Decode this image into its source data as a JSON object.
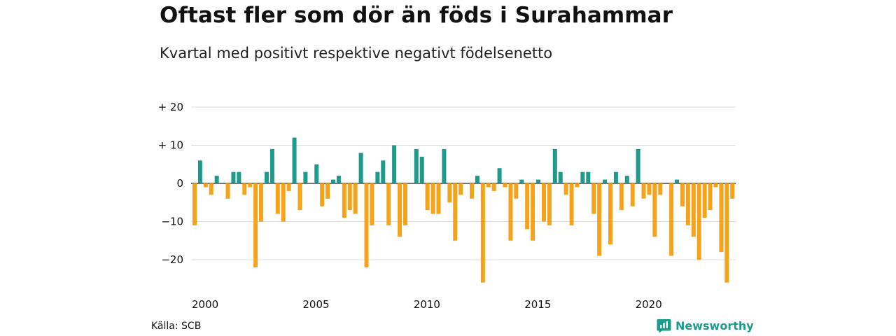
{
  "title": "Oftast fler som dör än föds i Surahammar",
  "subtitle": "Kvartal med positivt respektive negativt födelsenetto",
  "source": "Källa: SCB",
  "brand": {
    "name": "Newsworthy",
    "icon": "newsworthy-logo-icon"
  },
  "colors": {
    "positive": "#1f9a8a",
    "negative": "#f6a31c",
    "grid": "#dddddd",
    "brand": "#1d9a8a"
  },
  "chart_data": {
    "type": "bar",
    "x_start": "2000 Q1",
    "quarters_per_year": 4,
    "x_ticks": [
      "2000",
      "2005",
      "2010",
      "2015",
      "2020"
    ],
    "y_ticks": [
      {
        "value": 20,
        "label": "+ 20"
      },
      {
        "value": 10,
        "label": "+ 10"
      },
      {
        "value": 0,
        "label": "0"
      },
      {
        "value": -10,
        "label": "−10"
      },
      {
        "value": -20,
        "label": "−20"
      }
    ],
    "ylim": [
      -27,
      20
    ],
    "grid": true,
    "values": [
      -11,
      6,
      -1,
      -3,
      2,
      0,
      -4,
      3,
      3,
      -3,
      -1,
      -22,
      -10,
      3,
      9,
      -8,
      -10,
      -2,
      12,
      -7,
      3,
      0,
      5,
      -6,
      -4,
      1,
      2,
      -9,
      -7,
      -8,
      8,
      -22,
      -11,
      3,
      6,
      -11,
      10,
      -14,
      -11,
      0,
      9,
      7,
      -7,
      -8,
      -8,
      9,
      -5,
      -15,
      -3,
      0,
      -4,
      2,
      -26,
      -1,
      -2,
      4,
      -1,
      -15,
      -4,
      1,
      -12,
      -15,
      1,
      -10,
      -11,
      9,
      3,
      -3,
      -11,
      -1,
      3,
      3,
      -8,
      -19,
      1,
      -16,
      3,
      -7,
      2,
      -6,
      9,
      -4,
      -3,
      -14,
      -3,
      0,
      -19,
      1,
      -6,
      -11,
      -14,
      -20,
      -9,
      -7,
      -1,
      -18,
      -26,
      -4
    ]
  }
}
